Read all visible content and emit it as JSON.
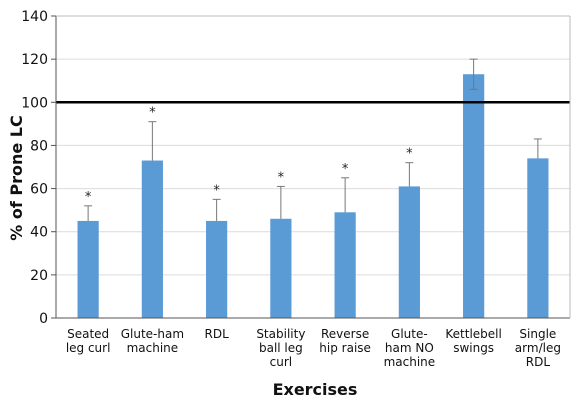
{
  "chart_data": {
    "type": "bar",
    "xlabel": "Exercises",
    "ylabel": "% of Prone LC",
    "ylim": [
      0,
      140
    ],
    "yticks": [
      0,
      20,
      40,
      60,
      80,
      100,
      120,
      140
    ],
    "reference_line": 100,
    "grid": true,
    "bar_color": "#5b9bd5",
    "categories": [
      [
        "Seated",
        "leg curl"
      ],
      [
        "Glute-ham",
        "machine"
      ],
      [
        "RDL"
      ],
      [
        "Stability",
        "ball leg",
        "curl"
      ],
      [
        "Reverse",
        "hip raise"
      ],
      [
        "Glute-",
        "ham NO",
        "machine"
      ],
      [
        "Kettlebell",
        "swings"
      ],
      [
        "Single",
        "arm/leg",
        "RDL"
      ]
    ],
    "values": [
      45,
      73,
      45,
      46,
      49,
      61,
      113,
      74
    ],
    "error_plus": [
      7,
      18,
      10,
      15,
      16,
      11,
      7,
      9
    ],
    "error_minus": [
      0,
      0,
      0,
      0,
      0,
      0,
      7,
      0
    ],
    "significance": [
      "*",
      "*",
      "*",
      "*",
      "*",
      "*",
      "",
      ""
    ]
  }
}
